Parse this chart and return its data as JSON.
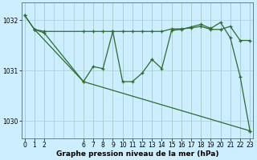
{
  "title": "Graphe pression niveau de la mer (hPa)",
  "bg_color": "#cceeff",
  "grid_color": "#aaccd0",
  "line_color": "#2d6a2d",
  "xlim": [
    -0.3,
    23.3
  ],
  "ylim": [
    1029.65,
    1032.35
  ],
  "yticks": [
    1030,
    1031,
    1032
  ],
  "x_hours": [
    0,
    1,
    2,
    6,
    7,
    8,
    9,
    10,
    11,
    12,
    13,
    14,
    15,
    16,
    17,
    18,
    19,
    20,
    21,
    22,
    23
  ],
  "series1_x": [
    0,
    1,
    2,
    6,
    7,
    8,
    9,
    10,
    11,
    12,
    13,
    14,
    15,
    16,
    17,
    18,
    19,
    20,
    21,
    22,
    23
  ],
  "series1_y": [
    1032.1,
    1031.82,
    1031.78,
    1031.78,
    1031.78,
    1031.78,
    1031.78,
    1031.78,
    1031.78,
    1031.78,
    1031.78,
    1031.78,
    1031.83,
    1031.83,
    1031.85,
    1031.88,
    1031.82,
    1031.82,
    1031.88,
    1031.6,
    1031.6
  ],
  "series2_x": [
    0,
    1,
    2,
    6,
    7,
    8,
    9,
    10,
    11,
    12,
    13,
    14,
    15,
    16,
    17,
    18,
    19,
    20,
    21,
    22,
    23
  ],
  "series2_y": [
    1032.1,
    1031.82,
    1031.75,
    1030.78,
    1031.08,
    1031.04,
    1031.78,
    1030.78,
    1030.78,
    1030.95,
    1031.22,
    1031.04,
    1031.8,
    1031.82,
    1031.87,
    1031.92,
    1031.84,
    1031.96,
    1031.65,
    1030.88,
    1029.8
  ],
  "series3_x": [
    1,
    6,
    23
  ],
  "series3_y": [
    1031.82,
    1030.78,
    1029.8
  ],
  "title_fontsize": 6.5,
  "tick_fontsize": 5.5
}
